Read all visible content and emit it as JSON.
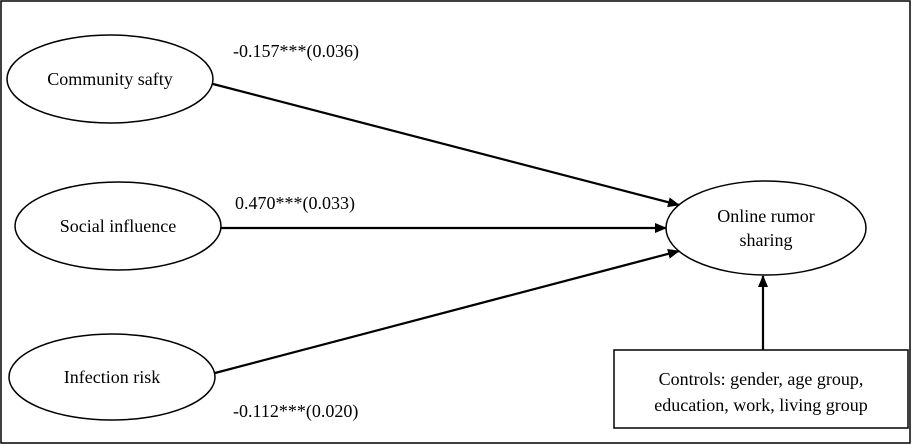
{
  "nodes": {
    "community_safety": {
      "label": "Community safty"
    },
    "social_influence": {
      "label": "Social influence"
    },
    "infection_risk": {
      "label": "Infection risk"
    },
    "online_rumor_sharing": {
      "label_line1": "Online rumor",
      "label_line2": "sharing"
    },
    "controls": {
      "label_line1": "Controls: gender, age group,",
      "label_line2": "education, work, living group"
    }
  },
  "edges": {
    "community_safety_to_sharing": {
      "coefficient": "-0.157***(0.036)"
    },
    "social_influence_to_sharing": {
      "coefficient": "0.470***(0.033)"
    },
    "infection_risk_to_sharing": {
      "coefficient": "-0.112***(0.020)"
    }
  },
  "colors": {
    "stroke": "#000000",
    "background": "#ffffff"
  }
}
